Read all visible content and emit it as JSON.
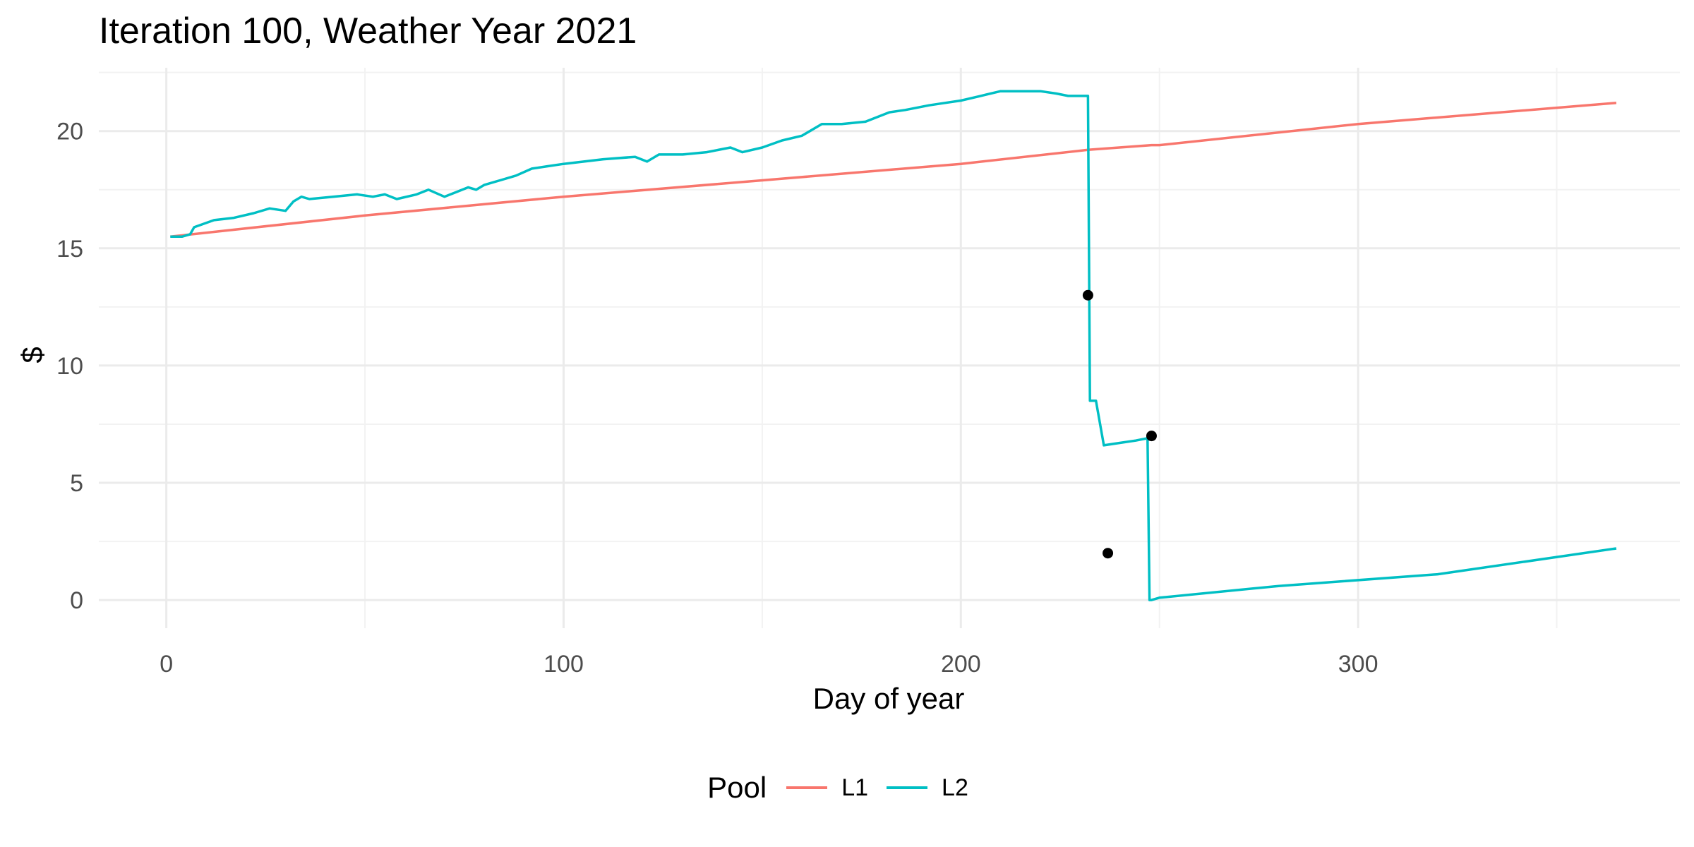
{
  "chart_data": {
    "type": "line",
    "title": "Iteration 100, Weather Year 2021",
    "xlabel": "Day of year",
    "ylabel": "$",
    "xlim": [
      -17,
      381
    ],
    "ylim": [
      -1.2,
      22.7
    ],
    "x_ticks": [
      0,
      100,
      200,
      300
    ],
    "y_ticks": [
      0,
      5,
      10,
      15,
      20
    ],
    "grid": true,
    "legend": {
      "title": "Pool",
      "position": "bottom"
    },
    "series": [
      {
        "name": "L1",
        "color": "#F8766D",
        "x": [
          1,
          50,
          100,
          150,
          200,
          232,
          248,
          250,
          300,
          365
        ],
        "y": [
          15.5,
          16.4,
          17.2,
          17.9,
          18.6,
          19.2,
          19.4,
          19.4,
          20.3,
          21.2
        ]
      },
      {
        "name": "L2",
        "color": "#00BFC4",
        "x": [
          1,
          4,
          6,
          7,
          12,
          17,
          22,
          26,
          30,
          32,
          34,
          36,
          42,
          48,
          52,
          55,
          58,
          63,
          66,
          70,
          73,
          76,
          78,
          80,
          84,
          88,
          92,
          96,
          100,
          110,
          118,
          121,
          124,
          130,
          136,
          142,
          145,
          150,
          155,
          160,
          165,
          170,
          176,
          182,
          186,
          192,
          196,
          200,
          205,
          210,
          215,
          220,
          224,
          227,
          232,
          232.5,
          234,
          236,
          240,
          244,
          247,
          247.5,
          248,
          250,
          280,
          320,
          365
        ],
        "y": [
          15.5,
          15.5,
          15.6,
          15.9,
          16.2,
          16.3,
          16.5,
          16.7,
          16.6,
          17.0,
          17.2,
          17.1,
          17.2,
          17.3,
          17.2,
          17.3,
          17.1,
          17.3,
          17.5,
          17.2,
          17.4,
          17.6,
          17.5,
          17.7,
          17.9,
          18.1,
          18.4,
          18.5,
          18.6,
          18.8,
          18.9,
          18.7,
          19.0,
          19.0,
          19.1,
          19.3,
          19.1,
          19.3,
          19.6,
          19.8,
          20.3,
          20.3,
          20.4,
          20.8,
          20.9,
          21.1,
          21.2,
          21.3,
          21.5,
          21.7,
          21.7,
          21.7,
          21.6,
          21.5,
          21.5,
          8.5,
          8.5,
          6.6,
          6.7,
          6.8,
          6.9,
          0.0,
          0.0,
          0.1,
          0.6,
          1.1,
          2.2
        ]
      }
    ],
    "points": {
      "color": "#000000",
      "x": [
        232,
        237,
        248
      ],
      "y": [
        13.0,
        2.0,
        7.0
      ]
    }
  }
}
